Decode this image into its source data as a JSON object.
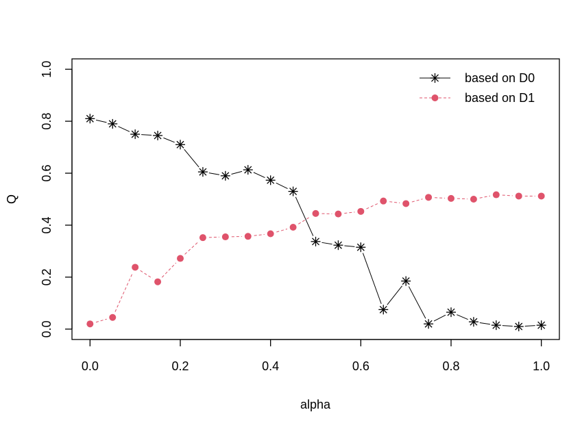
{
  "chart_data": {
    "type": "line",
    "title": "",
    "xlabel": "alpha",
    "ylabel": "Q",
    "xlim": [
      -0.04,
      1.04
    ],
    "ylim": [
      -0.04,
      1.04
    ],
    "xticks": [
      0.0,
      0.2,
      0.4,
      0.6,
      0.8,
      1.0
    ],
    "xtick_labels": [
      "0.0",
      "0.2",
      "0.4",
      "0.6",
      "0.8",
      "1.0"
    ],
    "yticks": [
      0.0,
      0.2,
      0.4,
      0.6,
      0.8,
      1.0
    ],
    "ytick_labels": [
      "0.0",
      "0.2",
      "0.4",
      "0.6",
      "0.8",
      "1.0"
    ],
    "grid": false,
    "legend_position": "top-right",
    "x": [
      0.0,
      0.05,
      0.1,
      0.15,
      0.2,
      0.25,
      0.3,
      0.35,
      0.4,
      0.45,
      0.5,
      0.55,
      0.6,
      0.65,
      0.7,
      0.75,
      0.8,
      0.85,
      0.9,
      0.95,
      1.0
    ],
    "series": [
      {
        "name": "based on D0",
        "color": "#000000",
        "marker": "asterisk",
        "line": "solid",
        "values": [
          0.81,
          0.79,
          0.75,
          0.745,
          0.71,
          0.605,
          0.59,
          0.613,
          0.573,
          0.53,
          0.337,
          0.323,
          0.315,
          0.075,
          0.185,
          0.02,
          0.065,
          0.028,
          0.015,
          0.01,
          0.015
        ]
      },
      {
        "name": "based on D1",
        "color": "#DF536B",
        "marker": "dot",
        "line": "dashed",
        "values": [
          0.02,
          0.045,
          0.238,
          0.182,
          0.272,
          0.352,
          0.355,
          0.357,
          0.367,
          0.392,
          0.445,
          0.443,
          0.453,
          0.493,
          0.483,
          0.507,
          0.503,
          0.5,
          0.517,
          0.512,
          0.512
        ]
      }
    ]
  }
}
